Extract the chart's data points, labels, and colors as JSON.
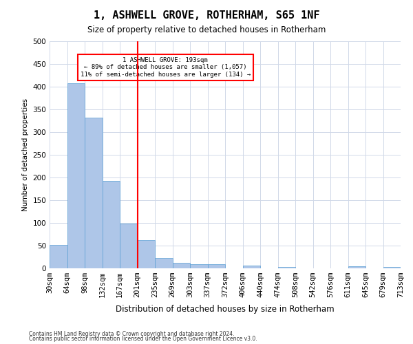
{
  "title": "1, ASHWELL GROVE, ROTHERHAM, S65 1NF",
  "subtitle": "Size of property relative to detached houses in Rotherham",
  "xlabel": "Distribution of detached houses by size in Rotherham",
  "ylabel": "Number of detached properties",
  "footnote1": "Contains HM Land Registry data © Crown copyright and database right 2024.",
  "footnote2": "Contains public sector information licensed under the Open Government Licence v3.0.",
  "bin_labels": [
    "30sqm",
    "64sqm",
    "98sqm",
    "132sqm",
    "167sqm",
    "201sqm",
    "235sqm",
    "269sqm",
    "303sqm",
    "337sqm",
    "372sqm",
    "406sqm",
    "440sqm",
    "474sqm",
    "508sqm",
    "542sqm",
    "576sqm",
    "611sqm",
    "645sqm",
    "679sqm",
    "713sqm"
  ],
  "bar_heights": [
    52,
    407,
    332,
    192,
    98,
    62,
    23,
    12,
    9,
    9,
    0,
    6,
    0,
    3,
    0,
    0,
    0,
    4,
    0,
    3
  ],
  "bar_color": "#aec6e8",
  "bar_edge_color": "#5a9fd4",
  "annotation_line1": "1 ASHWELL GROVE: 193sqm",
  "annotation_line2": "← 89% of detached houses are smaller (1,057)",
  "annotation_line3": "11% of semi-detached houses are larger (134) →",
  "ylim": [
    0,
    500
  ],
  "yticks": [
    0,
    50,
    100,
    150,
    200,
    250,
    300,
    350,
    400,
    450,
    500
  ],
  "background_color": "#ffffff",
  "grid_color": "#d0d8e8"
}
